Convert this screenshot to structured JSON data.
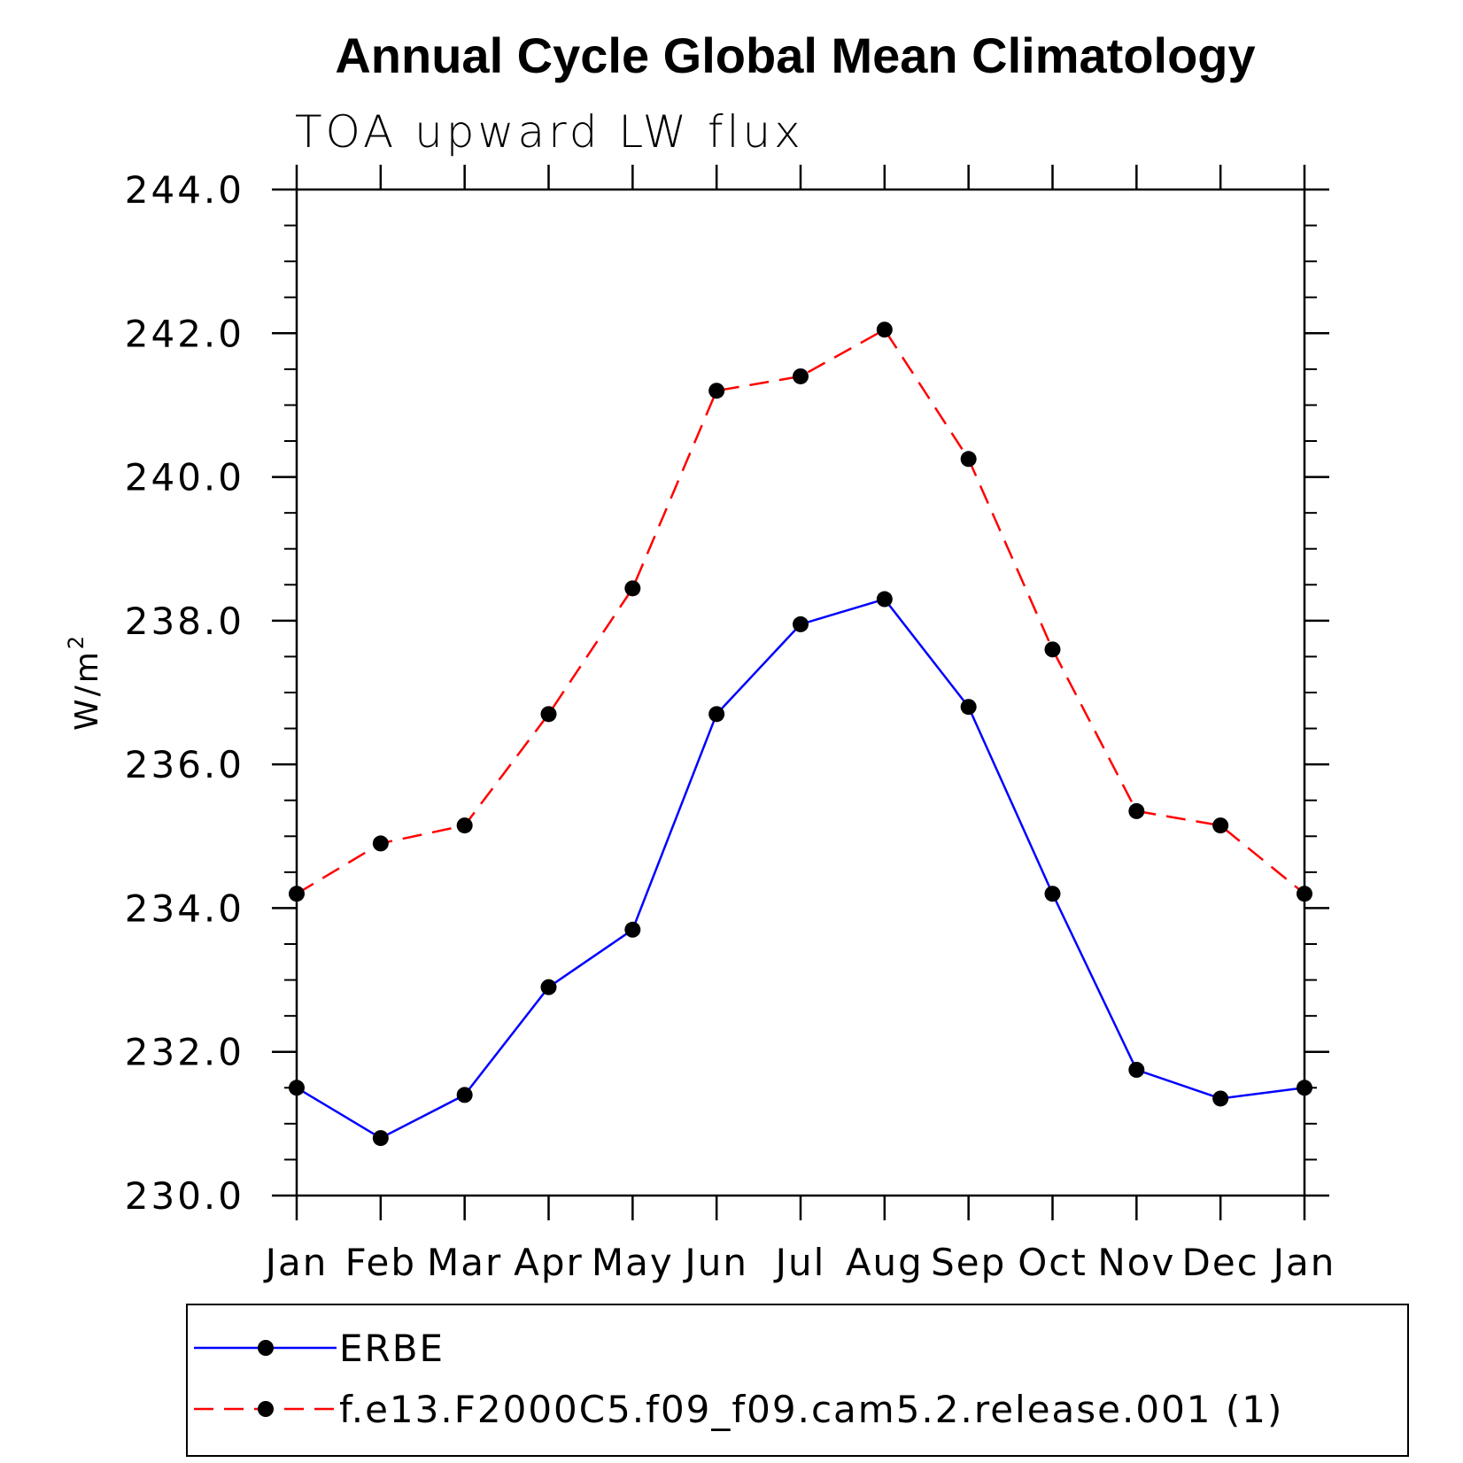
{
  "chart_data": {
    "type": "line",
    "title": "Annual Cycle Global Mean Climatology",
    "subtitle": "TOA upward LW flux",
    "ylabel": "W/m",
    "ylabel_superscript": "2",
    "ylim": [
      230.0,
      244.0
    ],
    "yticks": [
      "230.0",
      "232.0",
      "234.0",
      "236.0",
      "238.0",
      "240.0",
      "242.0",
      "244.0"
    ],
    "categories": [
      "Jan",
      "Feb",
      "Mar",
      "Apr",
      "May",
      "Jun",
      "Jul",
      "Aug",
      "Sep",
      "Oct",
      "Nov",
      "Dec",
      "Jan"
    ],
    "grid": false,
    "legend_position": "bottom",
    "series": [
      {
        "name": "ERBE",
        "color": "#0000ff",
        "dash": "solid",
        "values": [
          231.5,
          230.8,
          231.4,
          232.9,
          233.7,
          236.7,
          237.95,
          238.3,
          236.8,
          234.2,
          231.75,
          231.35,
          231.5
        ]
      },
      {
        "name": "f.e13.F2000C5.f09_f09.cam5.2.release.001 (1)",
        "color": "#ff0000",
        "dash": "dashed",
        "values": [
          234.2,
          234.9,
          235.15,
          236.7,
          238.45,
          241.2,
          241.4,
          242.05,
          240.25,
          237.6,
          235.35,
          235.15,
          234.2
        ]
      }
    ]
  }
}
